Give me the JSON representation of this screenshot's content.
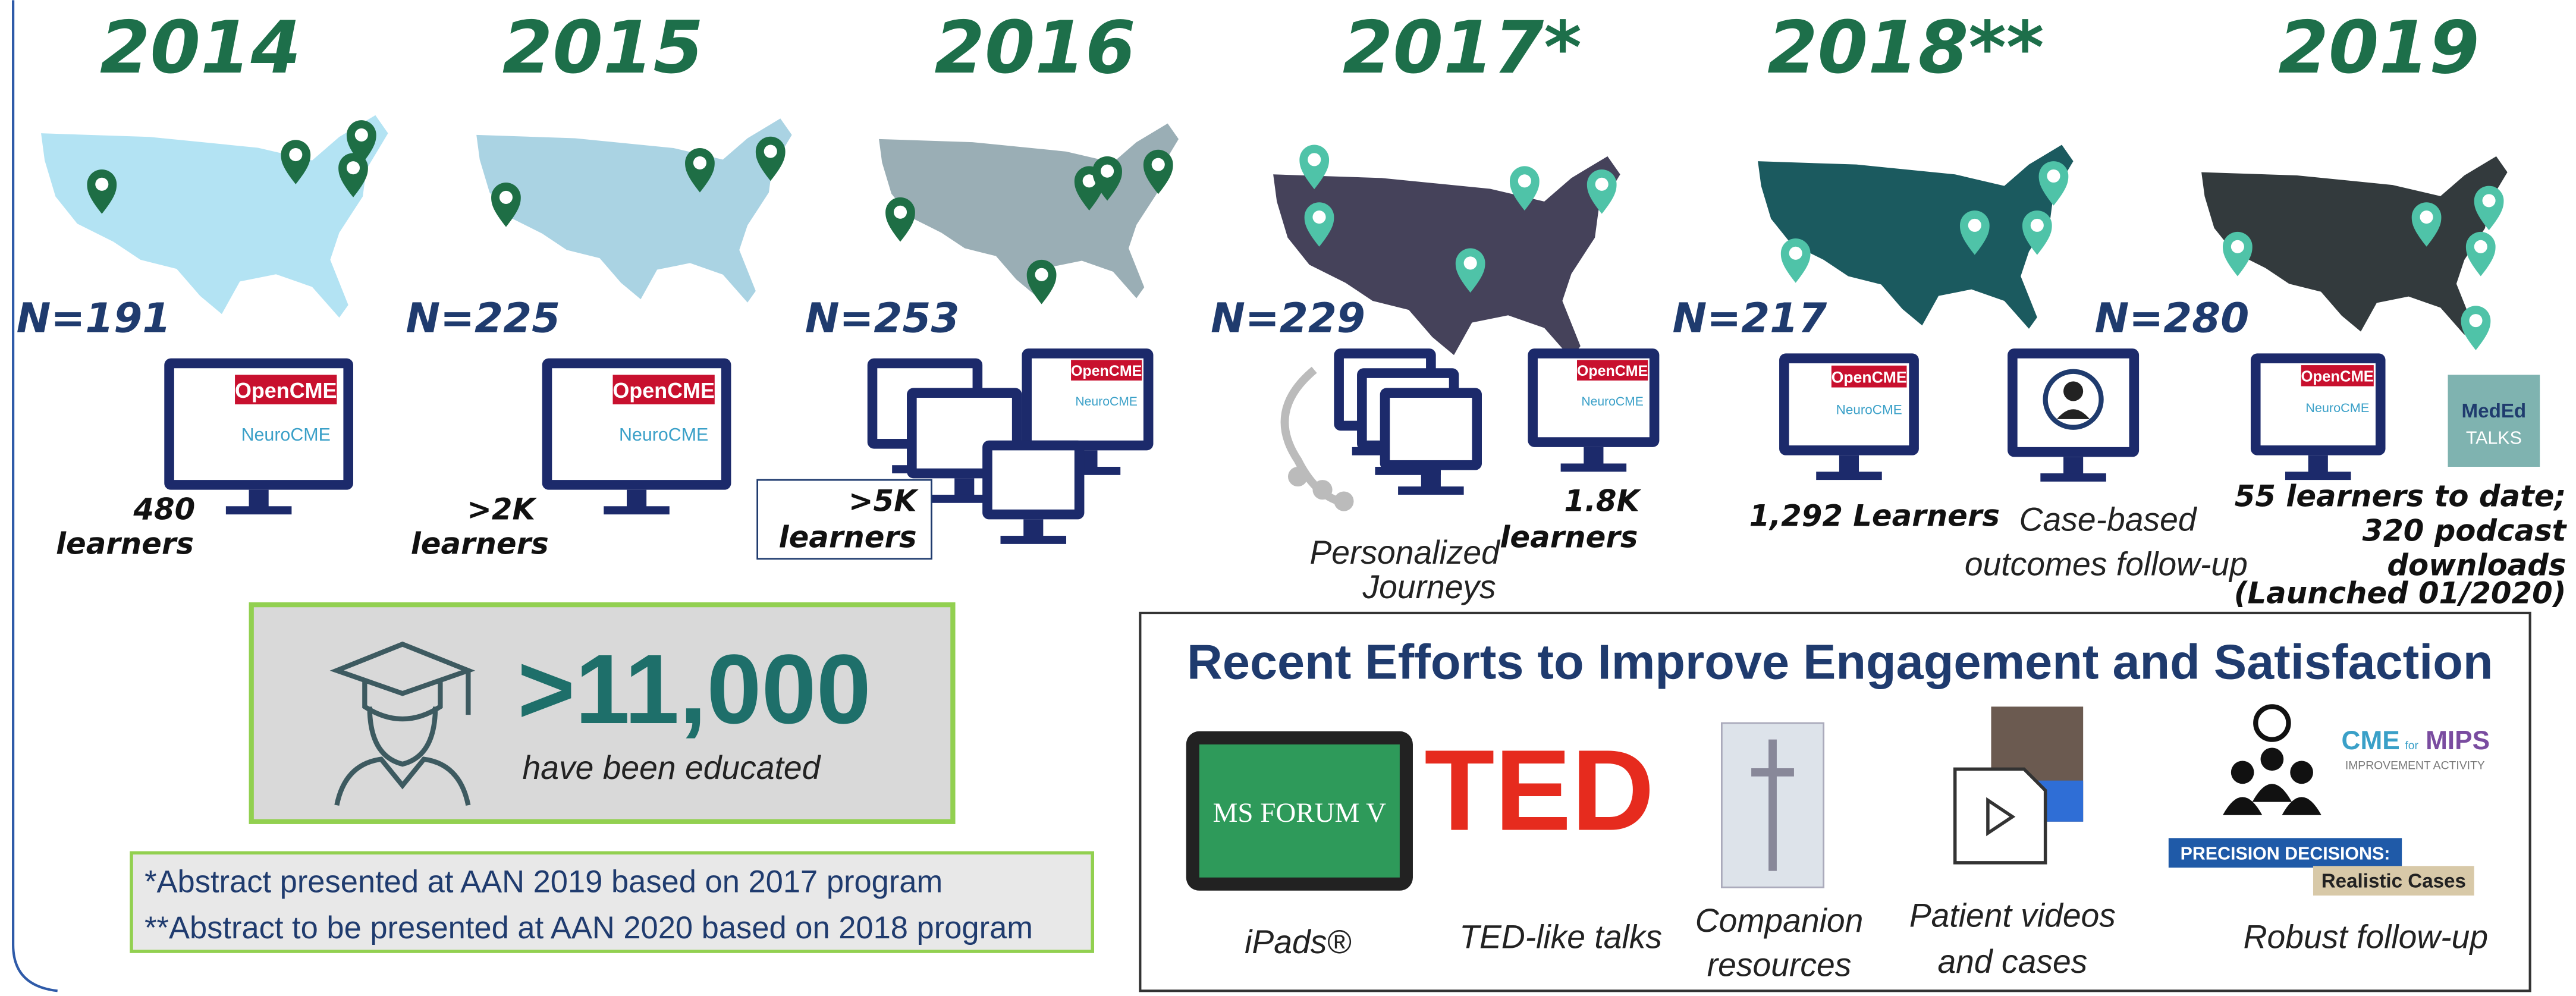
{
  "timeline": [
    {
      "year": "2014",
      "n": "N=191",
      "learners": [
        "480",
        "learners"
      ]
    },
    {
      "year": "2015",
      "n": "N=225",
      "learners": [
        ">2K",
        "learners"
      ]
    },
    {
      "year": "2016",
      "n": "N=253",
      "learners": [
        ">5K",
        "learners"
      ]
    },
    {
      "year": "2017*",
      "n": "N=229",
      "learners": [
        "1.8K",
        "learners"
      ],
      "extra": [
        "Personalized",
        "Journeys"
      ]
    },
    {
      "year": "2018**",
      "n": "N=217",
      "learners": [
        "1,292 Learners"
      ],
      "extra": [
        "Case-based",
        "outcomes follow-up"
      ]
    },
    {
      "year": "2019",
      "n": "N=280",
      "learners": [
        "55 learners to date;",
        "320 podcast",
        "downloads"
      ],
      "note": "(Launched 01/2020)"
    }
  ],
  "logos": {
    "open": "OpenCME",
    "neuro": "NeuroCME",
    "meded": "MedEd",
    "talks": "TALKS"
  },
  "summary": {
    "count": ">11,000",
    "text": "have been educated"
  },
  "footnotes": [
    "*Abstract presented at AAN 2019 based on 2017 program",
    "**Abstract to be presented at AAN 2020 based on 2018 program"
  ],
  "efforts": {
    "title": "Recent Efforts to Improve Engagement and Satisfaction",
    "items": [
      [
        "iPads®"
      ],
      [
        "TED-like talks"
      ],
      [
        "Companion",
        "resources"
      ],
      [
        "Patient videos",
        "and cases"
      ],
      [
        "Robust follow-up"
      ]
    ],
    "icon_texts": {
      "forum": "MS FORUM V",
      "ted": "TED",
      "cme": "CME",
      "for": "for",
      "mips": "MIPS",
      "activity": "IMPROVEMENT ACTIVITY",
      "precision": "PRECISION DECISIONS:",
      "cases": "Realistic Cases"
    }
  }
}
